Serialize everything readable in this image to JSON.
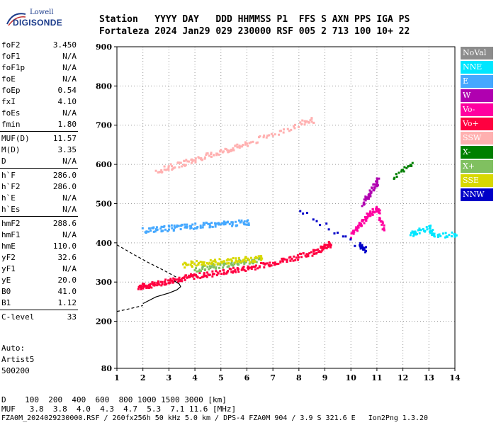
{
  "logo": {
    "line1": "Lowell",
    "line2": "DIGISONDE"
  },
  "header": {
    "line1": "Station   YYYY DAY   DDD HHMMSS P1  FFS S AXN PPS IGA PS",
    "line2": "Fortaleza 2024 Jan29 029 230000 RSF 005 2 713 100 10+ 22"
  },
  "params": [
    {
      "group": [
        {
          "k": "foF2",
          "v": "3.450"
        },
        {
          "k": "foF1",
          "v": "N/A"
        },
        {
          "k": "foF1p",
          "v": "N/A"
        },
        {
          "k": "foE",
          "v": "N/A"
        },
        {
          "k": "foEp",
          "v": "0.54"
        },
        {
          "k": "fxI",
          "v": "4.10"
        },
        {
          "k": "foEs",
          "v": "N/A"
        },
        {
          "k": "fmin",
          "v": "1.80"
        }
      ]
    },
    {
      "group": [
        {
          "k": "MUF(D)",
          "v": "11.57"
        },
        {
          "k": "M(D)",
          "v": "3.35"
        },
        {
          "k": "D",
          "v": "N/A"
        }
      ]
    },
    {
      "group": [
        {
          "k": "h`F",
          "v": "286.0"
        },
        {
          "k": "h`F2",
          "v": "286.0"
        },
        {
          "k": "h`E",
          "v": "N/A"
        },
        {
          "k": "h`Es",
          "v": "N/A"
        }
      ]
    },
    {
      "group": [
        {
          "k": "hmF2",
          "v": "288.6"
        },
        {
          "k": "hmF1",
          "v": "N/A"
        },
        {
          "k": "hmE",
          "v": "110.0"
        },
        {
          "k": "yF2",
          "v": "32.6"
        },
        {
          "k": "yF1",
          "v": "N/A"
        },
        {
          "k": "yE",
          "v": "20.0"
        },
        {
          "k": "B0",
          "v": "41.0"
        },
        {
          "k": "B1",
          "v": "1.12"
        }
      ]
    },
    {
      "group": [
        {
          "k": "C-level",
          "v": "33"
        }
      ]
    }
  ],
  "auto": {
    "line1": "Auto:",
    "line2": "Artist5",
    "line3": "500200"
  },
  "legend": [
    {
      "label": "NoVal",
      "color": "#8c8c8c"
    },
    {
      "label": "NNE",
      "color": "#00e6ff"
    },
    {
      "label": "E",
      "color": "#45a8ff"
    },
    {
      "label": "W",
      "color": "#b000b0"
    },
    {
      "label": "Vo-",
      "color": "#ff00a0"
    },
    {
      "label": "Vo+",
      "color": "#ff0040"
    },
    {
      "label": "SSW",
      "color": "#ffb0b0"
    },
    {
      "label": "X-",
      "color": "#008000"
    },
    {
      "label": "X+",
      "color": "#80c060"
    },
    {
      "label": "SSE",
      "color": "#d8d800"
    },
    {
      "label": "NNW",
      "color": "#0000c8"
    }
  ],
  "bottom": {
    "d_line": "D    100  200  400  600  800 1000 1500 3000 [km]",
    "muf_line": "MUF   3.8  3.8  4.0  4.3  4.7  5.3  7.1 11.6 [MHz]",
    "footer": "FZA0M_2024029230000.RSF / 260fx256h 50 kHz 5.0 km / DPS-4 FZA0M 904 / 3.9 S 321.6 E   Ion2Png 1.3.20"
  },
  "chart_data": {
    "type": "scatter",
    "title": "",
    "xlabel": "",
    "ylabel": "",
    "xlim": [
      1,
      14
    ],
    "ylim": [
      80,
      900
    ],
    "x_ticks": [
      1,
      2,
      3,
      4,
      5,
      6,
      7,
      8,
      9,
      10,
      11,
      12,
      13,
      14
    ],
    "y_ticks": [
      80,
      200,
      300,
      400,
      500,
      600,
      700,
      800,
      900
    ],
    "grid": "dotted",
    "series": [
      {
        "name": "Vo+",
        "color": "#ff0040",
        "desc": "O-mode F2 trace",
        "points": [
          [
            1.8,
            290
          ],
          [
            2.0,
            292
          ],
          [
            2.3,
            295
          ],
          [
            2.6,
            300
          ],
          [
            3.0,
            305
          ],
          [
            3.3,
            310
          ],
          [
            3.6,
            314
          ],
          [
            4.0,
            318
          ],
          [
            4.5,
            322
          ],
          [
            5.0,
            328
          ],
          [
            5.5,
            333
          ],
          [
            6.0,
            338
          ],
          [
            6.5,
            345
          ],
          [
            7.0,
            352
          ],
          [
            7.5,
            360
          ],
          [
            8.0,
            368
          ],
          [
            8.5,
            378
          ],
          [
            8.8,
            386
          ],
          [
            9.0,
            392
          ],
          [
            9.2,
            400
          ]
        ]
      },
      {
        "name": "X+",
        "color": "#80c060",
        "desc": "extraordinary trace",
        "points": [
          [
            4.0,
            335
          ],
          [
            4.5,
            340
          ],
          [
            5.0,
            345
          ],
          [
            5.5,
            350
          ],
          [
            6.0,
            355
          ],
          [
            6.5,
            360
          ]
        ]
      },
      {
        "name": "SSE",
        "color": "#d8d800",
        "desc": "oblique",
        "points": [
          [
            3.5,
            345
          ],
          [
            4.0,
            350
          ],
          [
            4.5,
            352
          ],
          [
            5.0,
            355
          ],
          [
            5.5,
            358
          ],
          [
            6.0,
            360
          ],
          [
            6.5,
            362
          ]
        ]
      },
      {
        "name": "E",
        "color": "#45a8ff",
        "desc": "oblique echo",
        "points": [
          [
            2.0,
            435
          ],
          [
            2.5,
            437
          ],
          [
            3.0,
            440
          ],
          [
            3.5,
            443
          ],
          [
            4.0,
            445
          ],
          [
            4.5,
            448
          ],
          [
            5.0,
            450
          ],
          [
            5.5,
            452
          ],
          [
            6.0,
            455
          ]
        ]
      },
      {
        "name": "SSW",
        "color": "#ffb0b0",
        "desc": "multi-hop",
        "points": [
          [
            2.5,
            585
          ],
          [
            3.0,
            595
          ],
          [
            3.5,
            605
          ],
          [
            4.0,
            615
          ],
          [
            4.5,
            625
          ],
          [
            5.0,
            635
          ],
          [
            5.5,
            645
          ],
          [
            6.0,
            655
          ],
          [
            7.0,
            680
          ],
          [
            8.0,
            705
          ],
          [
            8.5,
            715
          ]
        ]
      },
      {
        "name": "Vo-",
        "color": "#ff00a0",
        "desc": "F-spread",
        "points": [
          [
            10.0,
            420
          ],
          [
            10.2,
            440
          ],
          [
            10.4,
            455
          ],
          [
            10.6,
            470
          ],
          [
            10.8,
            480
          ],
          [
            11.0,
            490
          ],
          [
            11.2,
            440
          ]
        ]
      },
      {
        "name": "NNE",
        "color": "#00e6ff",
        "desc": "high frequency echoes",
        "points": [
          [
            12.3,
            425
          ],
          [
            12.5,
            430
          ],
          [
            13.0,
            440
          ],
          [
            13.2,
            420
          ],
          [
            14.0,
            425
          ]
        ]
      },
      {
        "name": "W",
        "color": "#b000b0",
        "desc": "W echoes",
        "points": [
          [
            10.4,
            500
          ],
          [
            10.6,
            520
          ],
          [
            10.8,
            540
          ],
          [
            11.0,
            560
          ]
        ]
      },
      {
        "name": "NNW",
        "color": "#0000c8",
        "desc": "NNW",
        "points": [
          [
            8.0,
            485
          ],
          [
            10.3,
            395
          ],
          [
            10.5,
            385
          ]
        ]
      },
      {
        "name": "X-",
        "color": "#008000",
        "desc": "X-",
        "points": [
          [
            11.6,
            570
          ],
          [
            12.3,
            600
          ]
        ]
      }
    ],
    "profile_curve": {
      "points": [
        [
          2.0,
          245
        ],
        [
          2.5,
          262
        ],
        [
          3.0,
          272
        ],
        [
          3.3,
          280
        ],
        [
          3.45,
          288
        ],
        [
          3.4,
          295
        ],
        [
          3.2,
          303
        ]
      ]
    },
    "profile_dashed_upper": {
      "points": [
        [
          1.0,
          395
        ],
        [
          1.6,
          372
        ],
        [
          2.2,
          350
        ],
        [
          2.8,
          330
        ],
        [
          3.3,
          312
        ]
      ]
    },
    "profile_dashed_lower": {
      "points": [
        [
          1.0,
          225
        ],
        [
          1.5,
          232
        ],
        [
          2.0,
          240
        ]
      ]
    }
  }
}
